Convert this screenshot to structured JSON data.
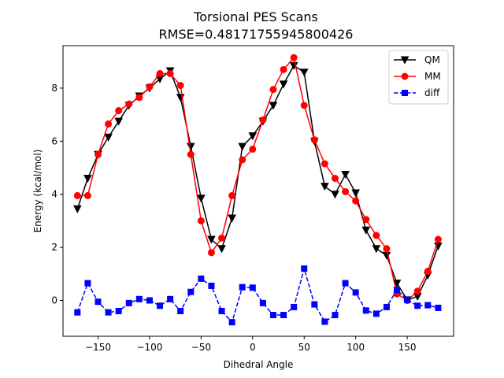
{
  "chart_data": {
    "type": "line",
    "title": "Torsional PES Scans",
    "subtitle": "RMSE=0.48171755945800426",
    "xlabel": "Dihedral Angle",
    "ylabel": "Energy (kcal/mol)",
    "xlim": [
      -184,
      195
    ],
    "ylim": [
      -1.35,
      9.6
    ],
    "xticks": [
      -150,
      -100,
      -50,
      0,
      50,
      100,
      150
    ],
    "yticks": [
      0,
      2,
      4,
      6,
      8
    ],
    "grid": false,
    "legend_position": "top-right",
    "x": [
      -170,
      -160,
      -150,
      -140,
      -130,
      -120,
      -110,
      -100,
      -90,
      -80,
      -70,
      -60,
      -50,
      -40,
      -30,
      -20,
      -10,
      0,
      10,
      20,
      30,
      40,
      50,
      60,
      70,
      80,
      90,
      100,
      110,
      120,
      130,
      140,
      150,
      160,
      170,
      180
    ],
    "series": [
      {
        "name": "QM",
        "color": "#000000",
        "marker": "triangle-down",
        "linestyle": "solid",
        "values": [
          3.45,
          4.6,
          5.5,
          6.15,
          6.75,
          7.35,
          7.7,
          8.0,
          8.35,
          8.65,
          7.65,
          5.8,
          3.85,
          2.3,
          1.95,
          3.1,
          5.8,
          6.2,
          6.75,
          7.35,
          8.15,
          8.85,
          8.6,
          6.0,
          4.3,
          4.0,
          4.75,
          4.05,
          2.65,
          1.95,
          1.7,
          0.65,
          0.02,
          0.15,
          0.95,
          2.05
        ]
      },
      {
        "name": "MM",
        "color": "#ff0000",
        "marker": "circle",
        "linestyle": "solid",
        "values": [
          3.95,
          3.95,
          5.5,
          6.65,
          7.15,
          7.4,
          7.65,
          8.05,
          8.55,
          8.55,
          8.1,
          5.5,
          3.0,
          1.8,
          2.35,
          3.95,
          5.3,
          5.7,
          6.8,
          7.95,
          8.7,
          9.15,
          7.35,
          6.05,
          5.15,
          4.6,
          4.1,
          3.75,
          3.05,
          2.45,
          1.95,
          0.25,
          0.0,
          0.35,
          1.1,
          2.3
        ]
      },
      {
        "name": "diff",
        "color": "#0000ff",
        "marker": "square",
        "linestyle": "dashed",
        "values": [
          -0.45,
          0.65,
          -0.05,
          -0.45,
          -0.4,
          -0.1,
          0.05,
          0.0,
          -0.2,
          0.05,
          -0.4,
          0.32,
          0.82,
          0.55,
          -0.4,
          -0.82,
          0.5,
          0.48,
          -0.1,
          -0.55,
          -0.55,
          -0.25,
          1.2,
          -0.15,
          -0.8,
          -0.55,
          0.65,
          0.3,
          -0.38,
          -0.5,
          -0.25,
          0.4,
          0.02,
          -0.2,
          -0.18,
          -0.28
        ]
      }
    ]
  }
}
